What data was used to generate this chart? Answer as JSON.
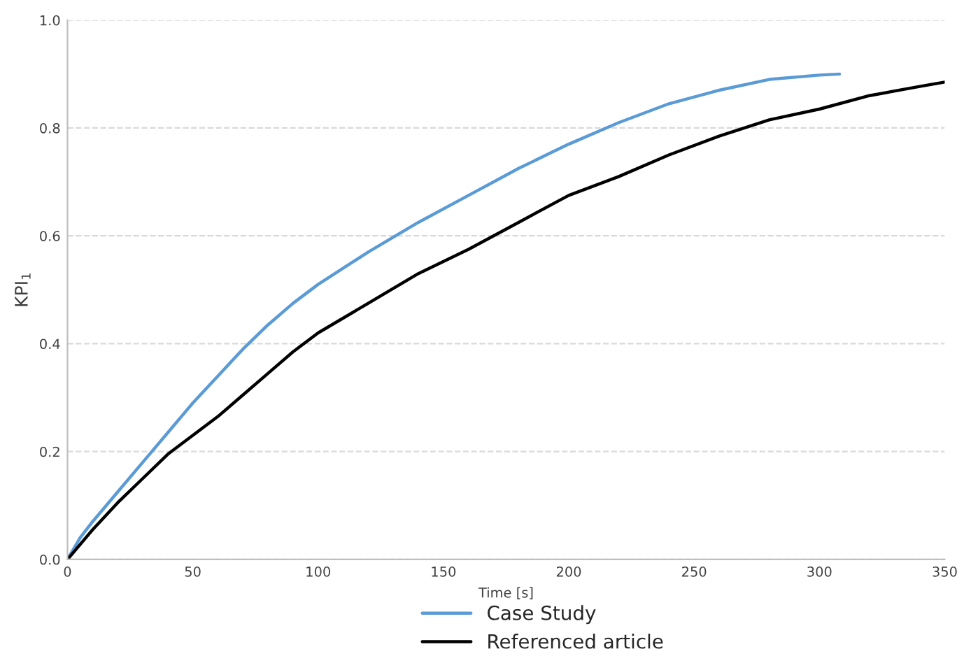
{
  "chart_data": {
    "type": "line",
    "xlabel": "Time [s]",
    "ylabel": "KPI$_{1}$",
    "series": [
      {
        "name": "Case Study",
        "color": "#5b9bd5",
        "x": [
          0,
          5,
          10,
          20,
          30,
          40,
          50,
          60,
          70,
          80,
          90,
          100,
          120,
          140,
          160,
          180,
          200,
          220,
          240,
          260,
          280,
          300,
          308
        ],
        "values": [
          0,
          0.04,
          0.07,
          0.125,
          0.18,
          0.235,
          0.29,
          0.34,
          0.39,
          0.435,
          0.475,
          0.51,
          0.57,
          0.625,
          0.675,
          0.725,
          0.77,
          0.81,
          0.845,
          0.87,
          0.89,
          0.898,
          0.9
        ]
      },
      {
        "name": "Referenced article",
        "color": "#000000",
        "x": [
          0,
          10,
          20,
          30,
          40,
          50,
          60,
          70,
          80,
          90,
          100,
          120,
          140,
          160,
          180,
          200,
          220,
          240,
          260,
          280,
          300,
          320,
          340,
          350
        ],
        "values": [
          0,
          0.055,
          0.105,
          0.15,
          0.195,
          0.23,
          0.265,
          0.305,
          0.345,
          0.385,
          0.42,
          0.475,
          0.53,
          0.575,
          0.625,
          0.675,
          0.71,
          0.75,
          0.785,
          0.815,
          0.835,
          0.86,
          0.877,
          0.885
        ]
      }
    ],
    "xlim": [
      0,
      350
    ],
    "xticks": [
      0,
      50,
      100,
      150,
      200,
      250,
      300,
      350
    ],
    "ylim": [
      0,
      1.0
    ],
    "yticks": [
      {
        "value": 0,
        "label": "0.0"
      },
      {
        "value": 0.2,
        "label": "0.2"
      },
      {
        "value": 0.4,
        "label": "0.4"
      },
      {
        "value": 0.6,
        "label": "0.6"
      },
      {
        "value": 0.8,
        "label": "0.8"
      },
      {
        "value": 1.0,
        "label": "1.0"
      }
    ],
    "grid": "y",
    "legend": "bottom",
    "marker": "none",
    "line_style": "solid"
  }
}
